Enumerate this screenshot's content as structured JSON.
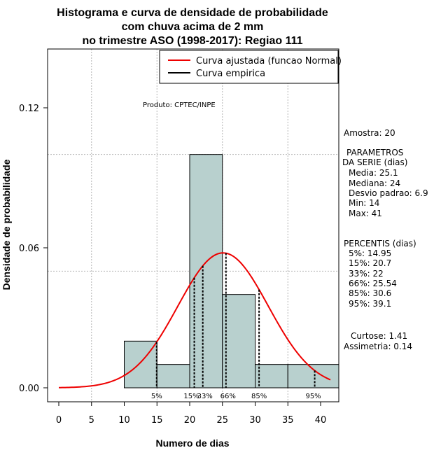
{
  "chart_data": {
    "type": "bar",
    "title": [
      "Histograma e curva de densidade de probabilidade",
      "com chuva acima de 2 mm",
      "no trimestre ASO (1998-2017): Regiao 111"
    ],
    "xlabel": "Numero de dias",
    "ylabel": "Densidade de probabilidade",
    "xlim": [
      -2,
      43
    ],
    "ylim": [
      0,
      0.15
    ],
    "x_ticks": [
      0,
      5,
      10,
      15,
      20,
      25,
      30,
      35,
      40
    ],
    "y_ticks": [
      0.0,
      0.06,
      0.12
    ],
    "y_tick_labels": [
      "0.00",
      "0.06",
      "0.12"
    ],
    "grid": true,
    "bins": [
      {
        "from": 10,
        "to": 15,
        "density": 0.02
      },
      {
        "from": 15,
        "to": 20,
        "density": 0.01
      },
      {
        "from": 20,
        "to": 25,
        "density": 0.1
      },
      {
        "from": 25,
        "to": 30,
        "density": 0.04
      },
      {
        "from": 30,
        "to": 35,
        "density": 0.01
      },
      {
        "from": 35,
        "to": 43,
        "density": 0.01
      }
    ],
    "normal_fit": {
      "mean": 25.1,
      "sd": 6.9
    },
    "percentile_lines": [
      {
        "label": "5%",
        "value": 14.95
      },
      {
        "label": "15%",
        "value": 20.7
      },
      {
        "label": "33%",
        "value": 22
      },
      {
        "label": "66%",
        "value": 25.54
      },
      {
        "label": "85%",
        "value": 30.6
      },
      {
        "label": "95%",
        "value": 39.1
      }
    ],
    "legend": {
      "position": "top-right",
      "entries": [
        {
          "label": "Curva ajustada (funcao Normal)",
          "color": "#ee0000"
        },
        {
          "label": "Curva empirica",
          "color": "#000000"
        }
      ]
    },
    "annotation": "Produto: CPTEC/INPE",
    "bar_color": "#b8d0ce",
    "curve_color": "#ee0000"
  },
  "stats_panel": {
    "sample": "Amostra: 20",
    "params_title_1": "PARAMETROS",
    "params_title_2": "DA SERIE (dias)",
    "params": [
      "Media: 25.1",
      "Mediana: 24",
      "Desvio padrao: 6.9",
      "Min: 14",
      "Max: 41"
    ],
    "percentiles_title": "PERCENTIS (dias)",
    "percentiles": [
      "5%: 14.95",
      "15%: 20.7",
      "33%: 22",
      "66%: 25.54",
      "85%: 30.6",
      "95%: 39.1"
    ],
    "kurtosis": "Curtose: 1.41",
    "skewness": "Assimetria: 0.14"
  }
}
